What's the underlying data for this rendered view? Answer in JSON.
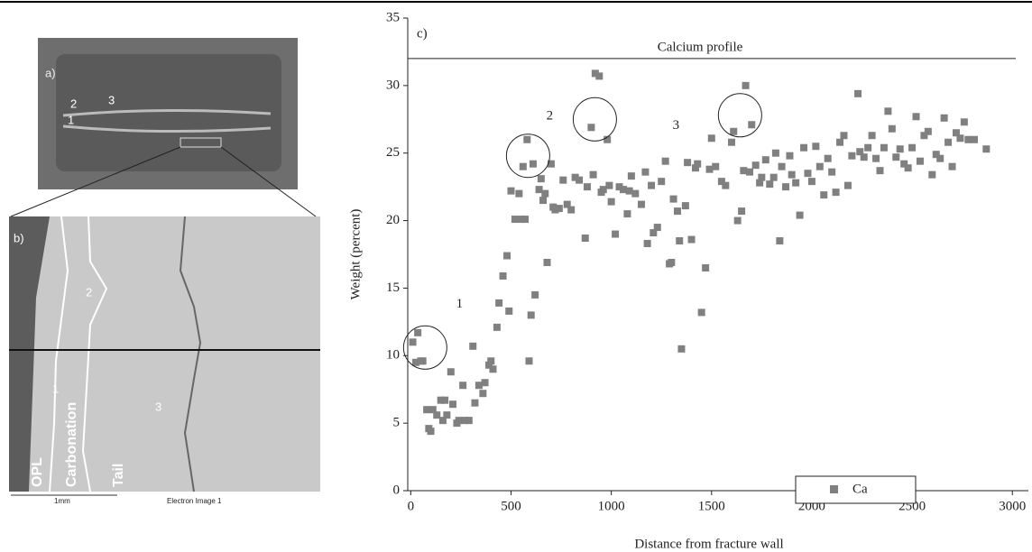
{
  "panels": {
    "a": {
      "label": "a)",
      "markers": [
        "1",
        "2",
        "3"
      ]
    },
    "b": {
      "label": "b)",
      "markers": [
        "1",
        "2",
        "3"
      ],
      "zones": [
        "OPL",
        "Carbonation",
        "Tail"
      ],
      "scale_label": "1mm",
      "caption": "Electron Image 1"
    }
  },
  "chart_data": {
    "type": "scatter",
    "panel_label": "c)",
    "xlabel": "Distance from fracture wall",
    "ylabel": "Weight (percent)",
    "xlim": [
      -15,
      3080
    ],
    "ylim": [
      0,
      35
    ],
    "xticks": [
      0,
      500,
      1000,
      1500,
      2000,
      2500,
      3000
    ],
    "yticks": [
      0,
      5,
      10,
      15,
      20,
      25,
      30,
      35
    ],
    "legend": "lower right",
    "reference_line": {
      "value": 32,
      "label": "Calcium profile"
    },
    "annotations": [
      {
        "text": "1",
        "x": 243,
        "y": 13.8
      },
      {
        "text": "2",
        "x": 693,
        "y": 27.7
      },
      {
        "text": "3",
        "x": 1323,
        "y": 27
      }
    ],
    "highlight_circles": [
      {
        "x": 72,
        "y": 10.6
      },
      {
        "x": 585,
        "y": 24.8
      },
      {
        "x": 918,
        "y": 27.5
      },
      {
        "x": 1642,
        "y": 27.8
      }
    ],
    "series": [
      {
        "name": "Ca",
        "color": "#808080",
        "x": [
          10,
          25,
          35,
          50,
          60,
          80,
          90,
          100,
          110,
          130,
          150,
          160,
          170,
          180,
          200,
          210,
          230,
          240,
          260,
          270,
          290,
          310,
          320,
          340,
          360,
          370,
          390,
          400,
          410,
          430,
          440,
          460,
          480,
          490,
          500,
          520,
          540,
          550,
          560,
          570,
          580,
          590,
          600,
          610,
          620,
          640,
          650,
          660,
          670,
          680,
          700,
          710,
          720,
          740,
          760,
          780,
          800,
          820,
          840,
          870,
          880,
          900,
          910,
          920,
          940,
          950,
          960,
          980,
          990,
          1000,
          1020,
          1040,
          1060,
          1080,
          1090,
          1100,
          1120,
          1150,
          1170,
          1180,
          1200,
          1210,
          1230,
          1250,
          1270,
          1290,
          1300,
          1310,
          1330,
          1340,
          1350,
          1370,
          1380,
          1400,
          1420,
          1430,
          1450,
          1470,
          1490,
          1500,
          1520,
          1550,
          1570,
          1600,
          1610,
          1630,
          1650,
          1660,
          1670,
          1690,
          1700,
          1720,
          1740,
          1750,
          1770,
          1790,
          1810,
          1820,
          1840,
          1850,
          1870,
          1890,
          1900,
          1920,
          1940,
          1960,
          1980,
          2000,
          2020,
          2040,
          2060,
          2080,
          2100,
          2120,
          2140,
          2160,
          2180,
          2200,
          2230,
          2240,
          2260,
          2280,
          2300,
          2320,
          2340,
          2360,
          2380,
          2400,
          2420,
          2440,
          2460,
          2480,
          2500,
          2520,
          2540,
          2560,
          2580,
          2600,
          2620,
          2640,
          2660,
          2680,
          2700,
          2720,
          2740,
          2760,
          2780,
          2810,
          2870
        ],
        "values": [
          11,
          9.5,
          11.7,
          9.6,
          9.6,
          6,
          4.6,
          4.4,
          6,
          5.6,
          6.7,
          5.2,
          6.7,
          5.6,
          8.8,
          6.4,
          5,
          5.2,
          7.8,
          5.2,
          5.2,
          10.7,
          6.5,
          7.8,
          7.2,
          8,
          9.3,
          9.6,
          9,
          12.1,
          13.9,
          15.9,
          17.4,
          13.3,
          22.2,
          20.1,
          22,
          20.1,
          24,
          20.1,
          26,
          9.6,
          13,
          24.2,
          14.5,
          22.3,
          23.1,
          21.5,
          22,
          16.9,
          24.2,
          21,
          20.8,
          20.9,
          23,
          21.2,
          20.8,
          23.2,
          23,
          18.7,
          22.5,
          26.9,
          23.4,
          30.9,
          30.7,
          22.1,
          22.3,
          26,
          22.6,
          21.4,
          19,
          22.5,
          22.3,
          20.5,
          22.2,
          23.3,
          22,
          21.2,
          23.6,
          18.3,
          22.6,
          19.1,
          19.5,
          22.9,
          24.4,
          16.8,
          16.9,
          21.6,
          20.7,
          18.5,
          10.5,
          21.1,
          24.3,
          18.6,
          23.9,
          24.2,
          13.2,
          16.5,
          23.8,
          26.1,
          24,
          22.9,
          22.6,
          25.8,
          26.6,
          20,
          20.7,
          23.7,
          30,
          23.6,
          27.1,
          24.1,
          22.8,
          23.2,
          24.5,
          22.7,
          23.2,
          25,
          18.5,
          24,
          22.5,
          24.8,
          23.4,
          22.8,
          20.4,
          25.4,
          23.5,
          22.9,
          25.5,
          24,
          21.9,
          24.6,
          23.6,
          22.1,
          25.8,
          26.3,
          22.6,
          24.8,
          29.4,
          25.1,
          24.7,
          25.4,
          26.3,
          24.6,
          23.7,
          25.4,
          28.1,
          26.8,
          24.7,
          25.3,
          24.2,
          23.9,
          25.4,
          27.7,
          24.4,
          26.3,
          26.6,
          23.4,
          24.9,
          24.6,
          27.6,
          25.8,
          24,
          26.5,
          26.1,
          27.3,
          26,
          26,
          25.3
        ]
      }
    ]
  }
}
